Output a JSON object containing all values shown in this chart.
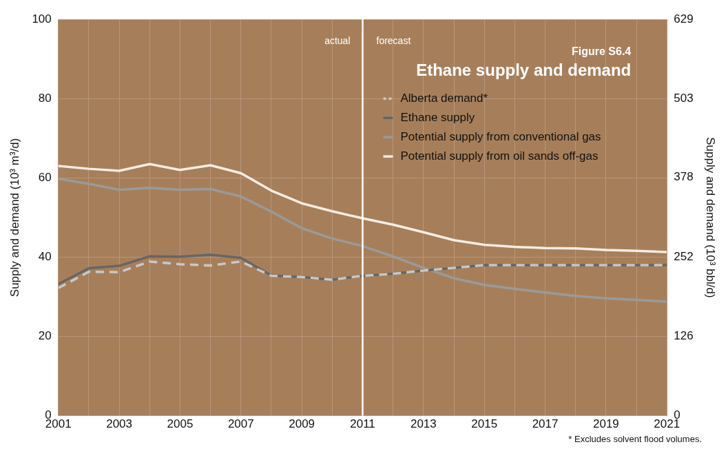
{
  "chart_data": {
    "type": "line",
    "title": "Ethane supply and demand",
    "subtitle": "Figure S6.4",
    "xlabel": null,
    "ylabel": "Supply and demand (10³ m³/d)",
    "y2label": "Supply and demand (10³ bbl/d)",
    "x": [
      2001,
      2002,
      2003,
      2004,
      2005,
      2006,
      2007,
      2008,
      2009,
      2010,
      2011,
      2012,
      2013,
      2014,
      2015,
      2016,
      2017,
      2018,
      2019,
      2020,
      2021
    ],
    "series": [
      {
        "name": "Alberta demand*",
        "color": "#c8c8c8",
        "line_style": "dashed",
        "values": [
          32.2,
          36.3,
          36.2,
          38.9,
          38.2,
          37.9,
          38.9,
          35.3,
          35,
          34.3,
          35.3,
          35.8,
          36.6,
          37.3,
          38,
          38,
          38,
          38,
          38,
          38,
          38
        ]
      },
      {
        "name": "Ethane supply",
        "color": "#666666",
        "line_style": "solid",
        "values": [
          33.2,
          37.2,
          37.8,
          40.2,
          40.1,
          40.6,
          39.8,
          35.4,
          35,
          34.3,
          35.3,
          35.8,
          36.6,
          37.3,
          38,
          38,
          38,
          38,
          38,
          38,
          38
        ]
      },
      {
        "name": "Potential supply from conventional gas",
        "color": "#9a9a9a",
        "line_style": "solid",
        "values": [
          59.8,
          58.5,
          57,
          57.5,
          57,
          57.2,
          55.3,
          51.5,
          47.3,
          44.7,
          42.8,
          40.2,
          37.3,
          34.7,
          33,
          32,
          31.1,
          30.2,
          29.6,
          29.2,
          28.8
        ]
      },
      {
        "name": "Potential supply from oil sands off-gas",
        "color": "#f5ede4",
        "line_style": "solid",
        "values": [
          63,
          62.3,
          61.8,
          63.5,
          62,
          63.2,
          61.2,
          56.8,
          53.6,
          51.6,
          49.8,
          48.2,
          46.3,
          44.3,
          43.1,
          42.6,
          42.3,
          42.2,
          41.8,
          41.6,
          41.3
        ]
      }
    ],
    "xlim": [
      2001,
      2021
    ],
    "xticks": [
      2001,
      {
        "value": 2002,
        "label": null
      },
      2003,
      {
        "value": 2004,
        "label": null
      },
      2005,
      {
        "value": 2006,
        "label": null
      },
      2007,
      {
        "value": 2008,
        "label": null
      },
      2009,
      {
        "value": 2010,
        "label": null
      },
      2011,
      {
        "value": 2012,
        "label": null
      },
      2013,
      {
        "value": 2014,
        "label": null
      },
      2015,
      {
        "value": 2016,
        "label": null
      },
      2017,
      {
        "value": 2018,
        "label": null
      },
      2019,
      {
        "value": 2020,
        "label": null
      },
      2021
    ],
    "ylim": [
      0,
      100
    ],
    "yticks": [
      0,
      20,
      40,
      60,
      80,
      100
    ],
    "y2lim": [
      0,
      629
    ],
    "y2ticks": [
      0,
      126,
      252,
      378,
      503,
      629
    ],
    "ref_lines": [
      {
        "axis": "x",
        "value": 2011,
        "color": "#ffffff"
      }
    ],
    "annotations": [
      "actual",
      "forecast",
      "* Excludes solvent flood volumes."
    ],
    "grid": true,
    "legend": "top right",
    "marker": "none"
  }
}
